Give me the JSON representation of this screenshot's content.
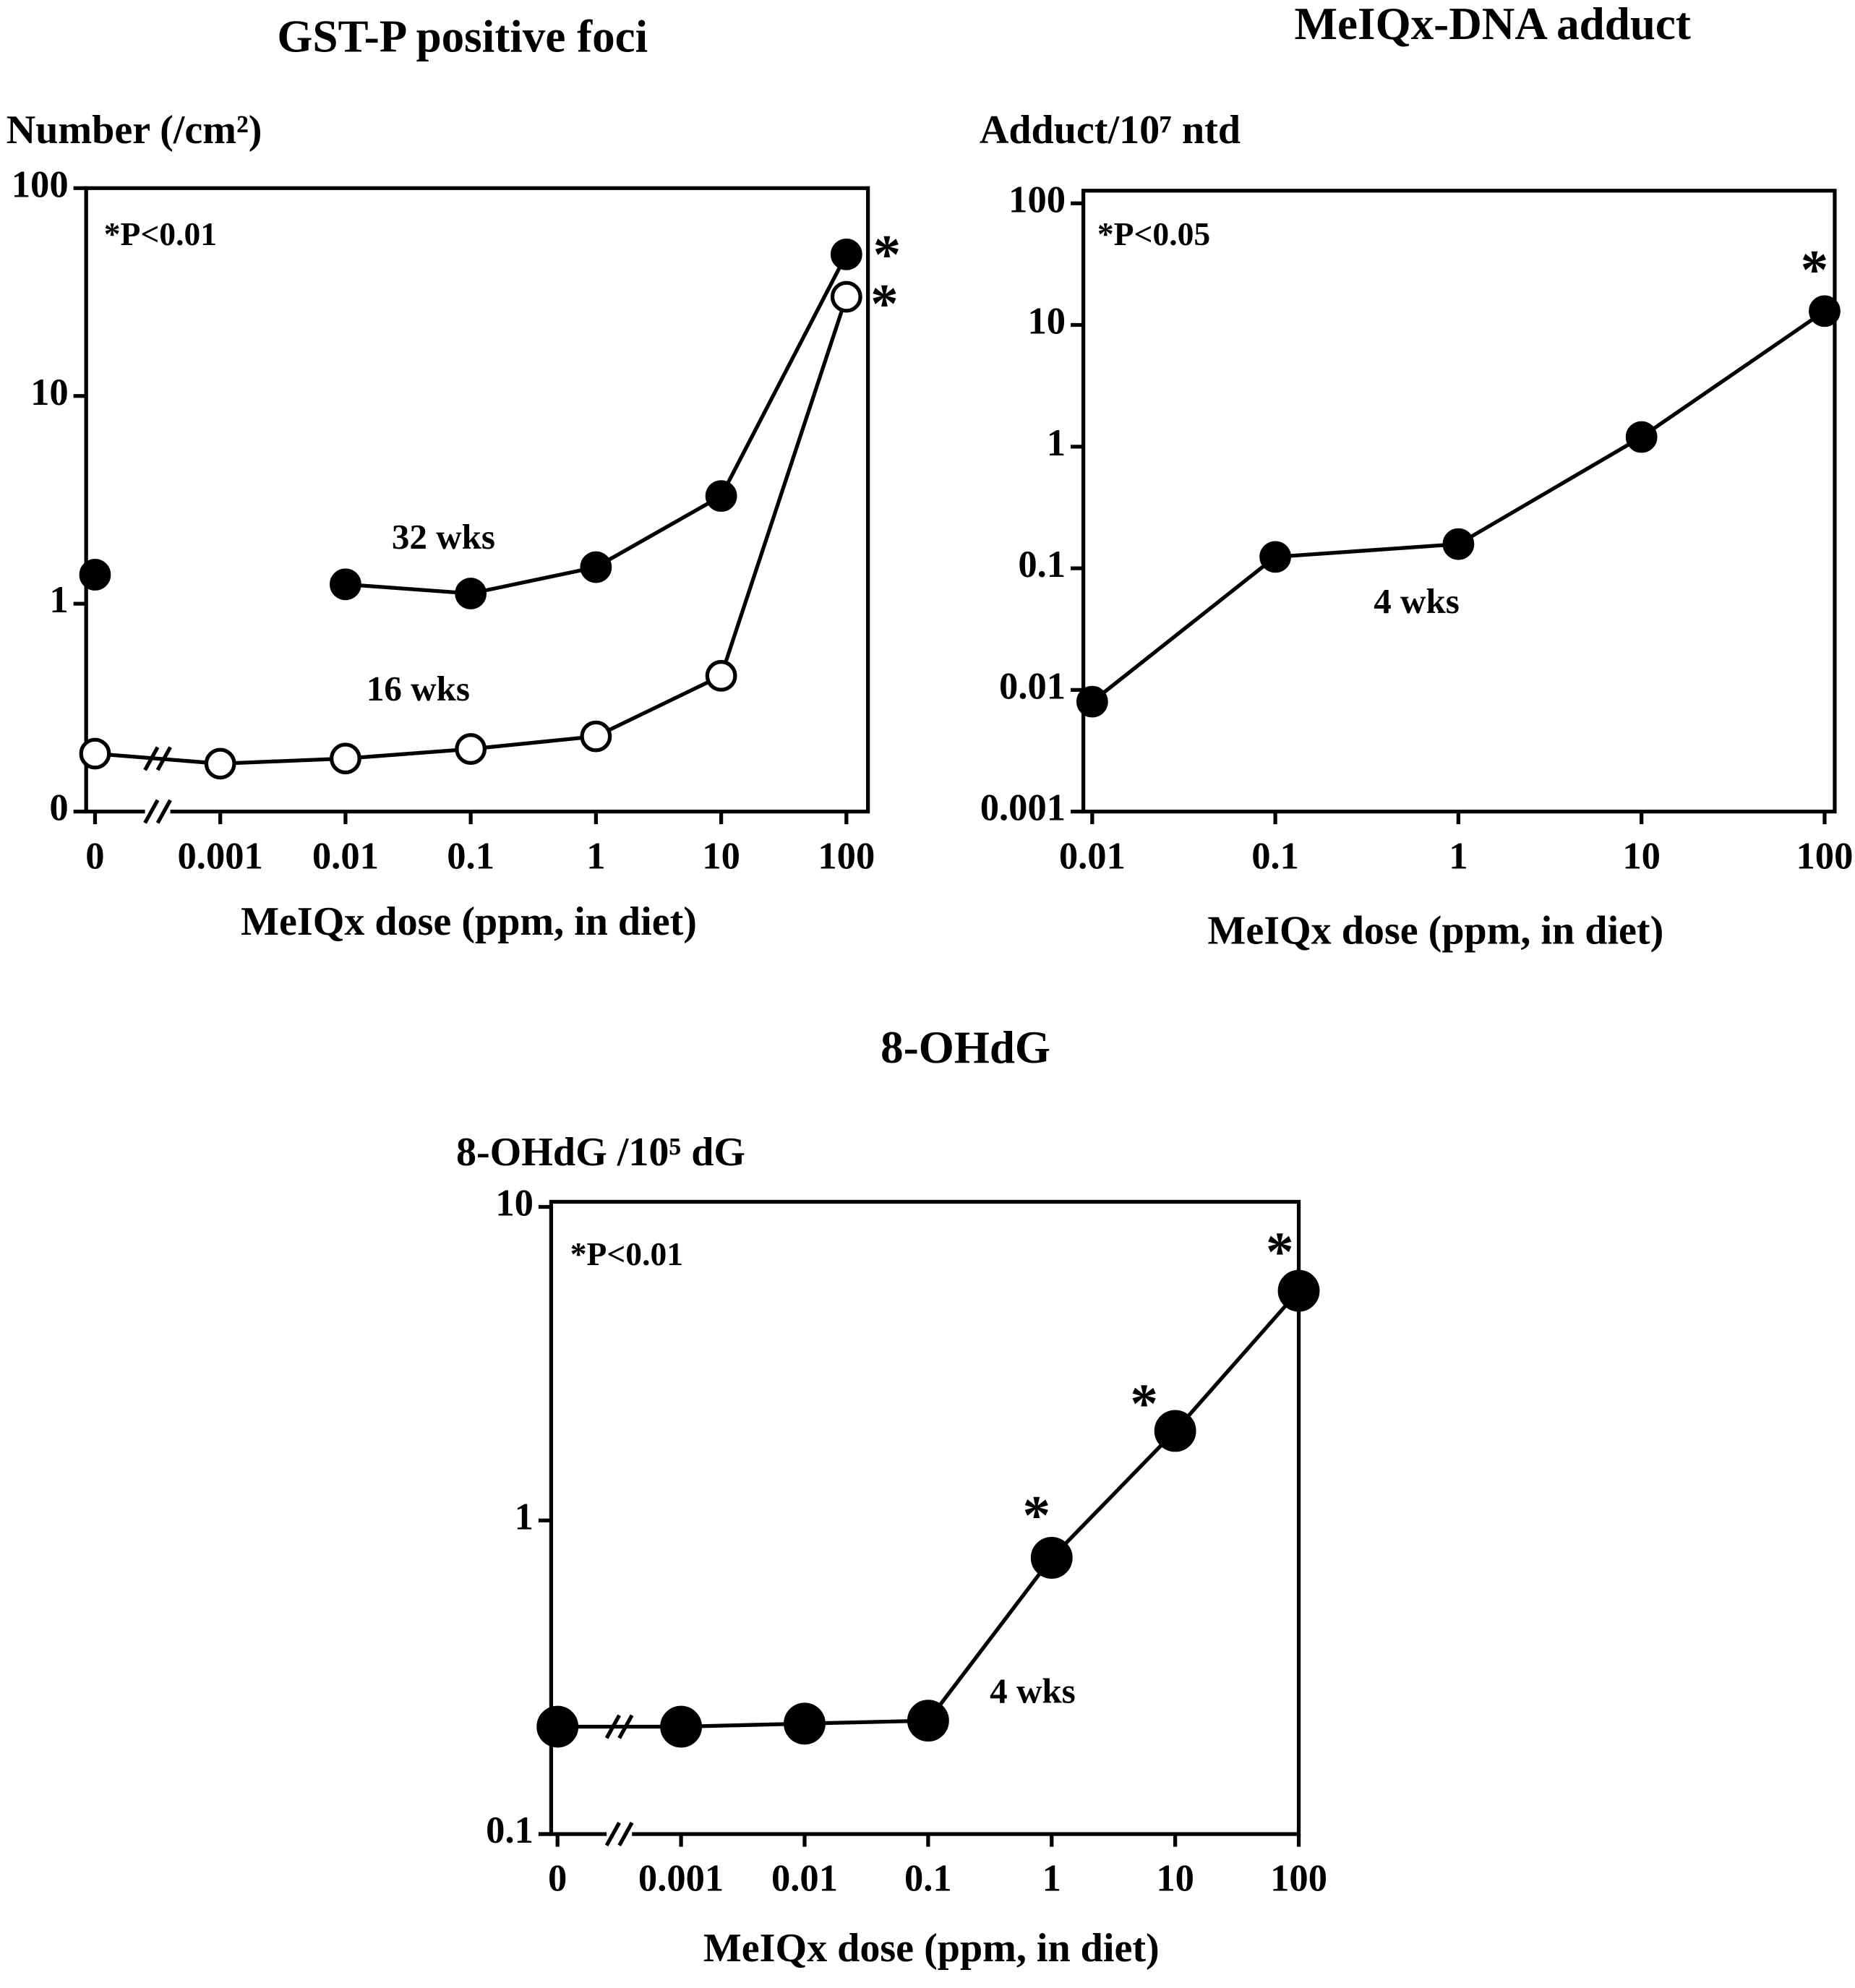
{
  "chart_data": [
    {
      "type": "line",
      "title": "GST-P positive foci",
      "ylabel": "Number (/cm²)",
      "xlabel": "MeIQx dose (ppm, in diet)",
      "categories": [
        "0",
        "0.001",
        "0.01",
        "0.1",
        "1",
        "10",
        "100"
      ],
      "series": [
        {
          "name": "32 wks",
          "color": "#000000",
          "marker_fill": "#000000",
          "values": [
            1.38,
            null,
            1.24,
            1.12,
            1.5,
            3.3,
            48
          ]
        },
        {
          "name": "16 wks",
          "color": "#000000",
          "marker_fill": "#ffffff",
          "values": [
            0.19,
            0.17,
            0.18,
            0.2,
            0.23,
            0.45,
            30
          ]
        }
      ],
      "ylog": true,
      "ylim": [
        0.1,
        100
      ],
      "yticks": [
        {
          "value": 0.1,
          "label": "0"
        },
        1,
        10,
        100
      ],
      "x_break": true,
      "annotations": [
        {
          "text": "*P<0.01"
        },
        {
          "text": "*"
        },
        {
          "text": "*"
        }
      ]
    },
    {
      "type": "line",
      "title": "MeIQx-DNA adduct",
      "ylabel": "Adduct/10⁷ ntd",
      "xlabel": "MeIQx dose (ppm, in diet)",
      "x": [
        0.01,
        0.1,
        1,
        10,
        100
      ],
      "series": [
        {
          "name": "4 wks",
          "color": "#000000",
          "marker_fill": "#000000",
          "values": [
            0.008,
            0.124,
            0.158,
            1.2,
            13
          ]
        }
      ],
      "xlog": true,
      "xlim": [
        0.01,
        100
      ],
      "xticks": [
        0.01,
        0.1,
        1,
        10,
        100
      ],
      "ylog": true,
      "ylim": [
        0.001,
        100
      ],
      "yticks": [
        0.001,
        0.01,
        0.1,
        1,
        10,
        100
      ],
      "annotations": [
        {
          "text": "*P<0.05"
        },
        {
          "text": "*"
        }
      ]
    },
    {
      "type": "line",
      "title": "8-OHdG",
      "ylabel": "8-OHdG /10⁵ dG",
      "xlabel": "MeIQx dose (ppm, in diet)",
      "categories": [
        "0",
        "0.001",
        "0.01",
        "0.1",
        "1",
        "10",
        "100"
      ],
      "series": [
        {
          "name": "4 wks",
          "color": "#000000",
          "marker_fill": "#000000",
          "values": [
            0.22,
            0.22,
            0.225,
            0.23,
            0.76,
            1.93,
            5.4
          ]
        }
      ],
      "ylog": true,
      "ylim": [
        0.1,
        10
      ],
      "yticks": [
        0.1,
        1,
        10
      ],
      "x_break": true,
      "annotations": [
        {
          "text": "*P<0.01"
        },
        {
          "text": "*"
        },
        {
          "text": "*"
        },
        {
          "text": "*"
        }
      ]
    }
  ]
}
